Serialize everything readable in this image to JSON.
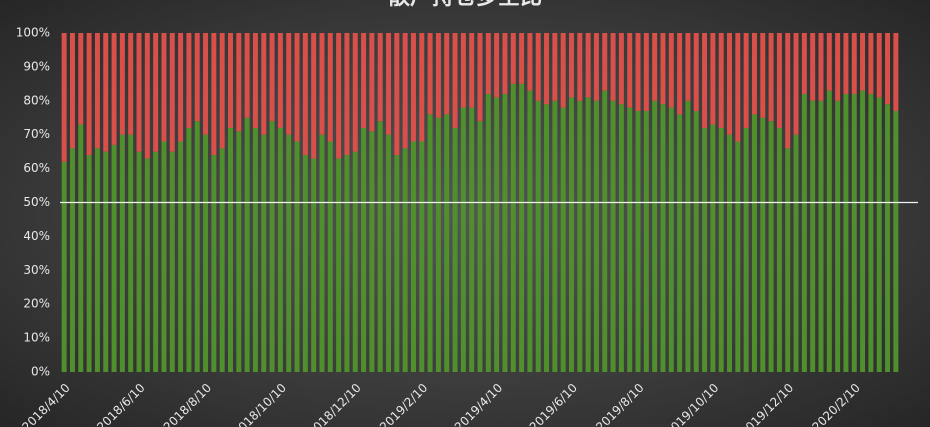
{
  "chart_data": {
    "type": "stacked_bar",
    "title": "散户持仓多空比",
    "categories": [
      "2018/4/10",
      null,
      null,
      null,
      null,
      null,
      null,
      null,
      null,
      "2018/6/10",
      null,
      null,
      null,
      null,
      null,
      null,
      null,
      "2018/8/10",
      null,
      null,
      null,
      null,
      null,
      null,
      null,
      null,
      "2018/10/10",
      null,
      null,
      null,
      null,
      null,
      null,
      null,
      null,
      "2018/12/10",
      null,
      null,
      null,
      null,
      null,
      null,
      null,
      "2019/2/10",
      null,
      null,
      null,
      null,
      null,
      null,
      null,
      null,
      "2019/4/10",
      null,
      null,
      null,
      null,
      null,
      null,
      null,
      null,
      "2019/6/10",
      null,
      null,
      null,
      null,
      null,
      null,
      null,
      "2019/8/10",
      null,
      null,
      null,
      null,
      null,
      null,
      null,
      null,
      "2019/10/10",
      null,
      null,
      null,
      null,
      null,
      null,
      null,
      null,
      "2019/12/10",
      null,
      null,
      null,
      null,
      null,
      null,
      null,
      "2020/2/10",
      null,
      null,
      null,
      null,
      null
    ],
    "series": [
      {
        "color": "#4f8f2c",
        "values": [
          62,
          66,
          73,
          64,
          66,
          65,
          67,
          70,
          70,
          65,
          63,
          65,
          68,
          65,
          68,
          72,
          74,
          70,
          64,
          66,
          72,
          71,
          75,
          72,
          70,
          74,
          72,
          70,
          68,
          64,
          63,
          70,
          68,
          63,
          64,
          65,
          72,
          71,
          74,
          70,
          64,
          66,
          68,
          68,
          76,
          75,
          76,
          72,
          78,
          78,
          74,
          82,
          81,
          82,
          85,
          85,
          83,
          80,
          79,
          80,
          78,
          81,
          80,
          81,
          80,
          83,
          80,
          79,
          78,
          77,
          77,
          80,
          79,
          78,
          76,
          80,
          77,
          72,
          73,
          72,
          70,
          68,
          72,
          76,
          75,
          74,
          72,
          66,
          70,
          82,
          80,
          80,
          83,
          80,
          82,
          82,
          83,
          82,
          81,
          79,
          77
        ]
      },
      {
        "color": "#d9504a",
        "values": [
          38,
          34,
          27,
          36,
          34,
          35,
          33,
          30,
          30,
          35,
          37,
          35,
          32,
          35,
          32,
          28,
          26,
          30,
          36,
          34,
          28,
          29,
          25,
          28,
          30,
          26,
          28,
          30,
          32,
          36,
          37,
          30,
          32,
          37,
          36,
          35,
          28,
          29,
          26,
          30,
          36,
          34,
          32,
          32,
          24,
          25,
          24,
          28,
          22,
          22,
          26,
          18,
          19,
          18,
          15,
          15,
          17,
          20,
          21,
          20,
          22,
          19,
          20,
          19,
          20,
          17,
          20,
          21,
          22,
          23,
          23,
          20,
          21,
          22,
          24,
          20,
          23,
          28,
          27,
          28,
          30,
          32,
          28,
          24,
          25,
          26,
          28,
          34,
          30,
          18,
          20,
          20,
          17,
          20,
          18,
          18,
          17,
          18,
          19,
          21,
          23
        ]
      }
    ],
    "ylim": [
      0,
      100
    ],
    "yticks": [
      {
        "value": 0,
        "label": "0%"
      },
      {
        "value": 10,
        "label": "10%"
      },
      {
        "value": 20,
        "label": "20%"
      },
      {
        "value": 30,
        "label": "30%"
      },
      {
        "value": 40,
        "label": "40%"
      },
      {
        "value": 50,
        "label": "50%"
      },
      {
        "value": 60,
        "label": "60%"
      },
      {
        "value": 70,
        "label": "70%"
      },
      {
        "value": 80,
        "label": "80%"
      },
      {
        "value": 90,
        "label": "90%"
      },
      {
        "value": 100,
        "label": "100%"
      }
    ],
    "hline": 50
  }
}
